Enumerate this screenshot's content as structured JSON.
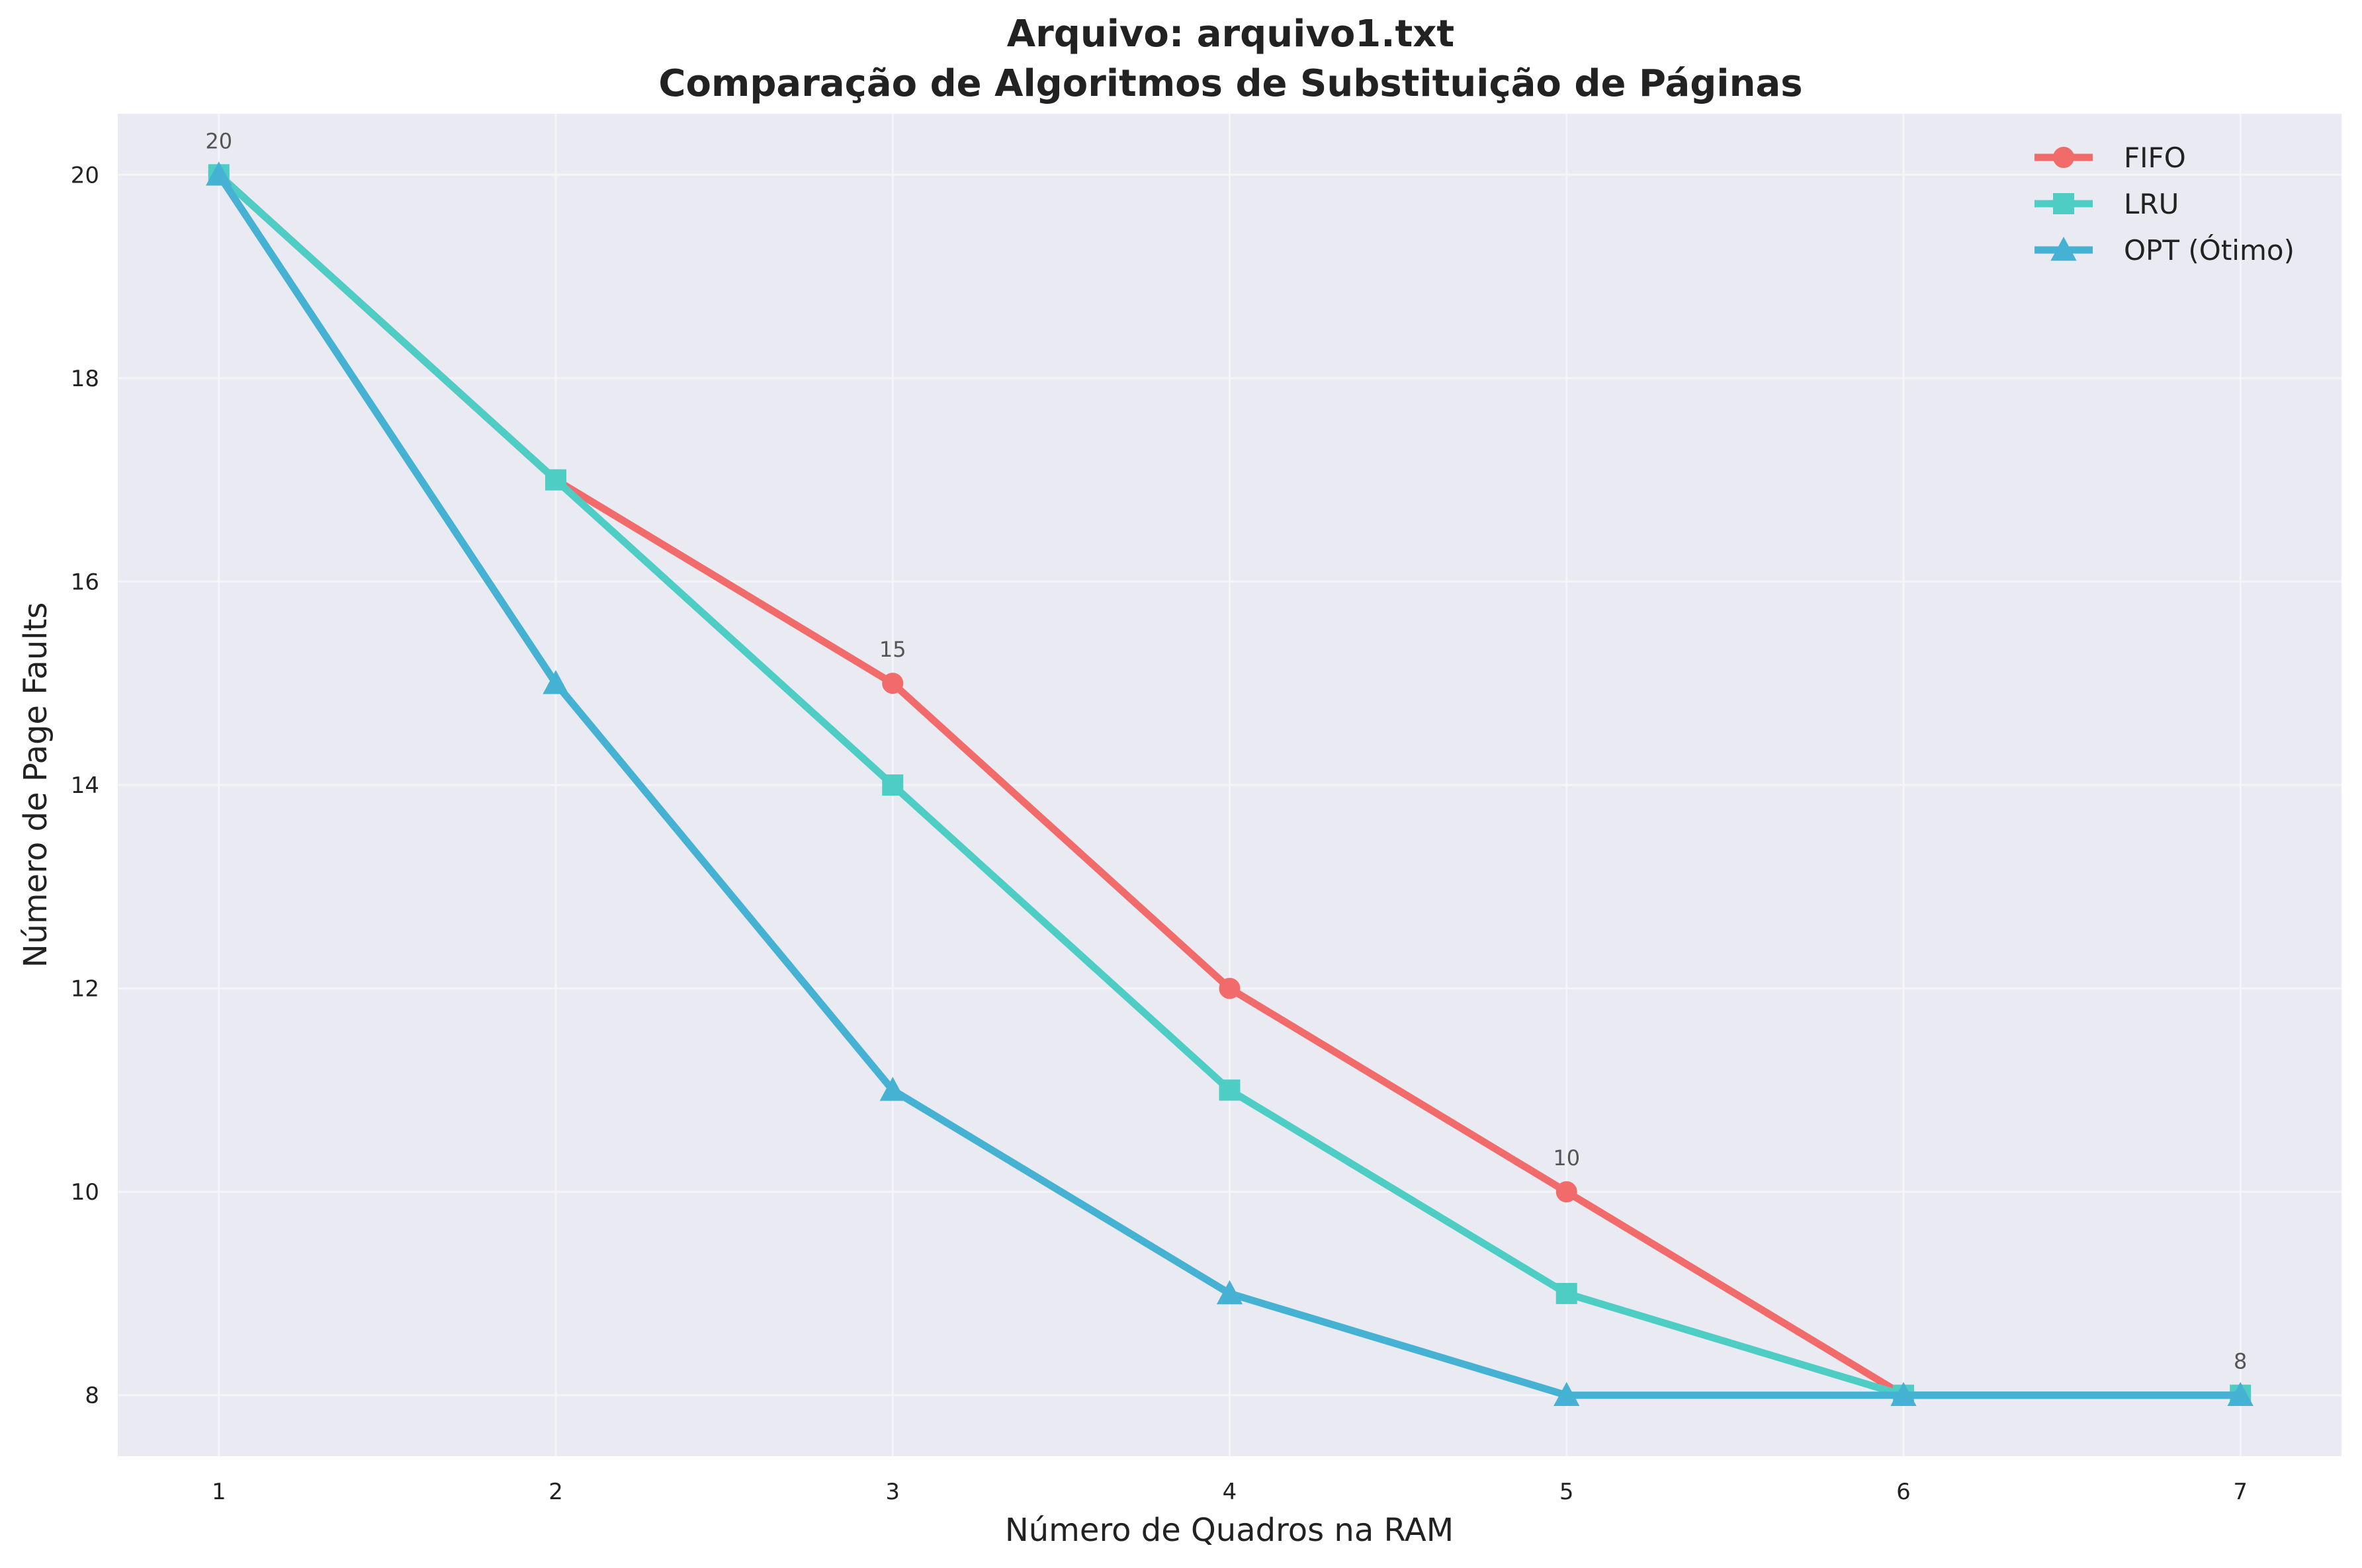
{
  "chart_data": {
    "type": "line",
    "title": "Arquivo: arquivo1.txt",
    "subtitle": "Comparação de Algoritmos de Substituição de Páginas",
    "xlabel": "Número de Quadros na RAM",
    "ylabel": "Número de Page Faults",
    "x": [
      1,
      2,
      3,
      4,
      5,
      6,
      7
    ],
    "xlim": [
      0.7,
      7.3
    ],
    "ylim": [
      7.4,
      20.6
    ],
    "xticks": [
      "1",
      "2",
      "3",
      "4",
      "5",
      "6",
      "7"
    ],
    "yticks": [
      "8",
      "10",
      "12",
      "14",
      "16",
      "18",
      "20"
    ],
    "grid": true,
    "legend_position": "top-right",
    "series": [
      {
        "name": "FIFO",
        "values": [
          20,
          17,
          15,
          12,
          10,
          8,
          8
        ],
        "color": "#f26b6b",
        "marker": "circle"
      },
      {
        "name": "LRU",
        "values": [
          20,
          17,
          14,
          11,
          9,
          8,
          8
        ],
        "color": "#4ecdc4",
        "marker": "square"
      },
      {
        "name": "OPT (Ótimo)",
        "values": [
          20,
          15,
          11,
          9,
          8,
          8,
          8
        ],
        "color": "#45b2d3",
        "marker": "triangle"
      }
    ],
    "annotations": [
      {
        "x": 1,
        "y": 20,
        "text": "20"
      },
      {
        "x": 3,
        "y": 15,
        "text": "15"
      },
      {
        "x": 5,
        "y": 10,
        "text": "10"
      },
      {
        "x": 7,
        "y": 8,
        "text": "8"
      }
    ],
    "colors": {
      "plot_background": "#eaeaf2",
      "grid": "#f5f5f8"
    }
  }
}
